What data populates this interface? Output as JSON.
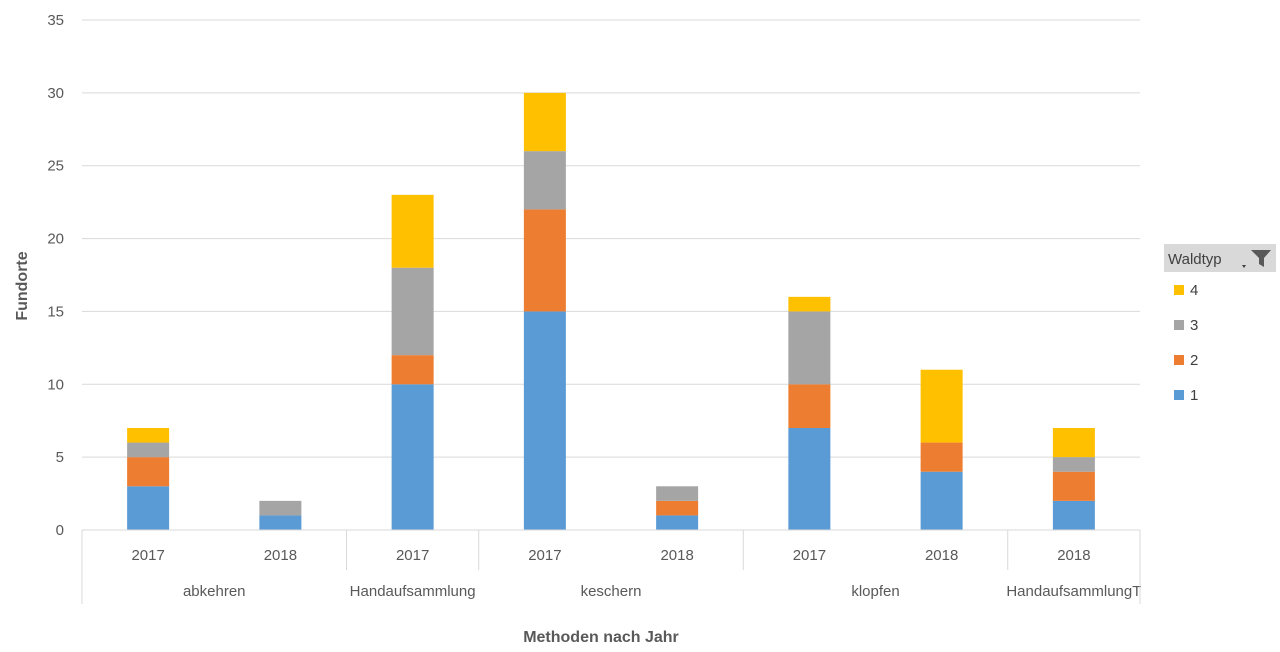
{
  "chart_data": {
    "type": "bar",
    "stacked": true,
    "xlabel": "Methoden nach Jahr",
    "ylabel": "Fundorte",
    "ylim": [
      0,
      35
    ],
    "yticks": [
      0,
      5,
      10,
      15,
      20,
      25,
      30,
      35
    ],
    "grid": true,
    "groups": [
      {
        "label": "abkehren",
        "years": [
          "2017",
          "2018"
        ]
      },
      {
        "label": "Handaufsammlung",
        "years": [
          "2017"
        ]
      },
      {
        "label": "keschern",
        "years": [
          "2017",
          "2018"
        ]
      },
      {
        "label": "klopfen",
        "years": [
          "2017",
          "2018"
        ]
      },
      {
        "label": "HandaufsammlungT",
        "years": [
          "2018"
        ]
      }
    ],
    "categories": [
      "abkehren 2017",
      "abkehren 2018",
      "Handaufsammlung 2017",
      "keschern 2017",
      "keschern 2018",
      "klopfen 2017",
      "klopfen 2018",
      "HandaufsammlungT 2018"
    ],
    "series": [
      {
        "name": "1",
        "color": "#5B9BD5",
        "values": [
          3,
          1,
          10,
          15,
          1,
          7,
          4,
          2
        ]
      },
      {
        "name": "2",
        "color": "#ED7D31",
        "values": [
          2,
          0,
          2,
          7,
          1,
          3,
          2,
          2
        ]
      },
      {
        "name": "3",
        "color": "#A5A5A5",
        "values": [
          1,
          1,
          6,
          4,
          1,
          5,
          0,
          1
        ]
      },
      {
        "name": "4",
        "color": "#FFC000",
        "values": [
          1,
          0,
          5,
          4,
          0,
          1,
          5,
          2
        ]
      }
    ],
    "legend": {
      "title": "Waldtyp",
      "position": "right",
      "order": [
        "4",
        "3",
        "2",
        "1"
      ]
    }
  }
}
